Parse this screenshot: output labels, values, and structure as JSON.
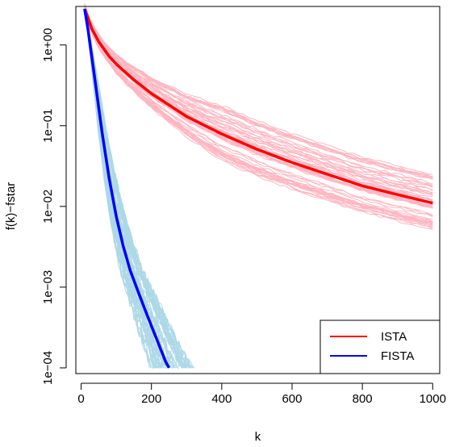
{
  "chart_data": {
    "type": "line",
    "title": "",
    "xlabel": "k",
    "ylabel": "f(k)−fstar",
    "xlim": [
      -15,
      1020
    ],
    "ylim": [
      8.5e-05,
      3.0
    ],
    "y_scale": "log",
    "x_ticks": [
      0,
      200,
      400,
      600,
      800,
      1000
    ],
    "x_tick_labels": [
      "0",
      "200",
      "400",
      "600",
      "800",
      "1000"
    ],
    "y_ticks": [
      0.0001,
      0.001,
      0.01,
      0.1,
      1
    ],
    "y_tick_labels": [
      "1e−04",
      "1e−03",
      "1e−02",
      "1e−01",
      "1e+00"
    ],
    "grid": false,
    "legend_position": "bottom-right",
    "series": [
      {
        "name": "ISTA",
        "color": "#ff0000",
        "background_color": "#ffb6c1",
        "x": [
          10,
          30,
          50,
          80,
          100,
          150,
          200,
          300,
          400,
          500,
          600,
          700,
          800,
          900,
          1000
        ],
        "y": [
          2.8,
          1.6,
          1.1,
          0.72,
          0.58,
          0.37,
          0.25,
          0.13,
          0.079,
          0.051,
          0.035,
          0.025,
          0.018,
          0.014,
          0.011
        ]
      },
      {
        "name": "FISTA",
        "color": "#0000ff",
        "background_color": "#add8e6",
        "x": [
          10,
          20,
          40,
          60,
          80,
          100,
          120,
          140,
          160,
          180,
          200,
          220,
          240,
          250
        ],
        "y": [
          2.8,
          1.5,
          0.35,
          0.08,
          0.022,
          0.0075,
          0.0032,
          0.0016,
          0.00093,
          0.00055,
          0.00033,
          0.0002,
          0.00012,
          0.0001
        ]
      }
    ]
  }
}
